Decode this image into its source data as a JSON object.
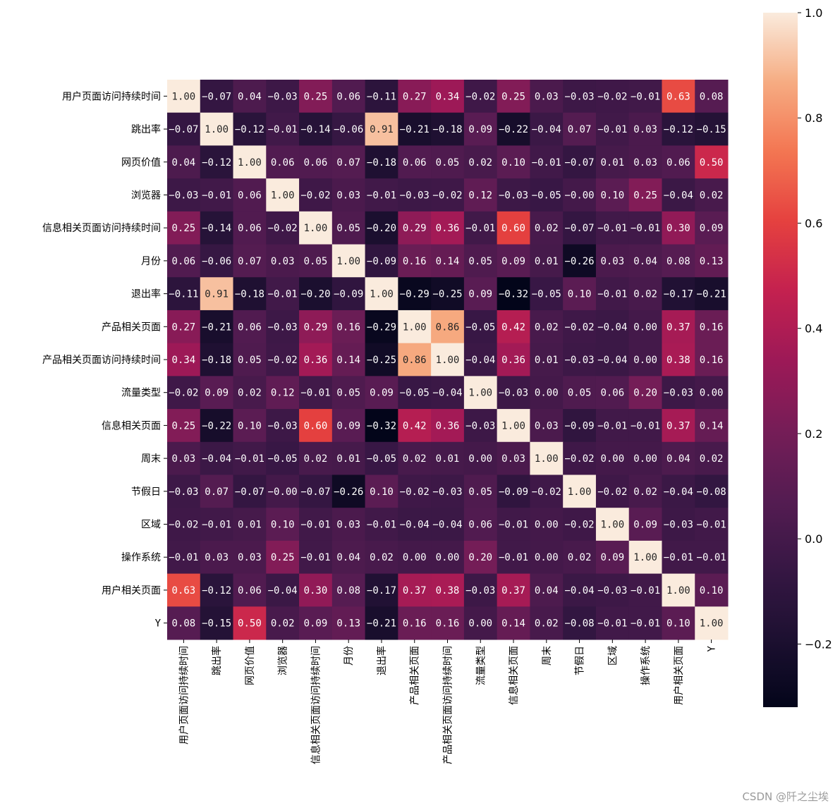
{
  "chart_data": {
    "type": "heatmap",
    "title": "",
    "xlabel": "",
    "ylabel": "",
    "labels": [
      "用户页面访问持续时间",
      "跳出率",
      "网页价值",
      "浏览器",
      "信息相关页面访问持续时间",
      "月份",
      "退出率",
      "产品相关页面",
      "产品相关页面访问持续时间",
      "流量类型",
      "信息相关页面",
      "周末",
      "节假日",
      "区域",
      "操作系统",
      "用户相关页面",
      "Y"
    ],
    "values": [
      [
        1.0,
        -0.07,
        0.04,
        -0.03,
        0.25,
        0.06,
        -0.11,
        0.27,
        0.34,
        -0.02,
        0.25,
        0.03,
        -0.03,
        -0.02,
        -0.01,
        0.63,
        0.08
      ],
      [
        -0.07,
        1.0,
        -0.12,
        -0.01,
        -0.14,
        -0.06,
        0.91,
        -0.21,
        -0.18,
        0.09,
        -0.22,
        -0.04,
        0.07,
        -0.01,
        0.03,
        -0.12,
        -0.15
      ],
      [
        0.04,
        -0.12,
        1.0,
        0.06,
        0.06,
        0.07,
        -0.18,
        0.06,
        0.05,
        0.02,
        0.1,
        -0.01,
        -0.07,
        0.01,
        0.03,
        0.06,
        0.5
      ],
      [
        -0.03,
        -0.01,
        0.06,
        1.0,
        -0.02,
        0.03,
        -0.01,
        -0.03,
        -0.02,
        0.12,
        -0.03,
        -0.05,
        -0.0,
        0.1,
        0.25,
        -0.04,
        0.02
      ],
      [
        0.25,
        -0.14,
        0.06,
        -0.02,
        1.0,
        0.05,
        -0.2,
        0.29,
        0.36,
        -0.01,
        0.6,
        0.02,
        -0.07,
        -0.01,
        -0.01,
        0.3,
        0.09
      ],
      [
        0.06,
        -0.06,
        0.07,
        0.03,
        0.05,
        1.0,
        -0.09,
        0.16,
        0.14,
        0.05,
        0.09,
        0.01,
        -0.26,
        0.03,
        0.04,
        0.08,
        0.13
      ],
      [
        -0.11,
        0.91,
        -0.18,
        -0.01,
        -0.2,
        -0.09,
        1.0,
        -0.29,
        -0.25,
        0.09,
        -0.32,
        -0.05,
        0.1,
        -0.01,
        0.02,
        -0.17,
        -0.21
      ],
      [
        0.27,
        -0.21,
        0.06,
        -0.03,
        0.29,
        0.16,
        -0.29,
        1.0,
        0.86,
        -0.05,
        0.42,
        0.02,
        -0.02,
        -0.04,
        0.0,
        0.37,
        0.16
      ],
      [
        0.34,
        -0.18,
        0.05,
        -0.02,
        0.36,
        0.14,
        -0.25,
        0.86,
        1.0,
        -0.04,
        0.36,
        0.01,
        -0.03,
        -0.04,
        0.0,
        0.38,
        0.16
      ],
      [
        -0.02,
        0.09,
        0.02,
        0.12,
        -0.01,
        0.05,
        0.09,
        -0.05,
        -0.04,
        1.0,
        -0.03,
        0.0,
        0.05,
        0.06,
        0.2,
        -0.03,
        0.0
      ],
      [
        0.25,
        -0.22,
        0.1,
        -0.03,
        0.6,
        0.09,
        -0.32,
        0.42,
        0.36,
        -0.03,
        1.0,
        0.03,
        -0.09,
        -0.01,
        -0.01,
        0.37,
        0.14
      ],
      [
        0.03,
        -0.04,
        -0.01,
        -0.05,
        0.02,
        0.01,
        -0.05,
        0.02,
        0.01,
        0.0,
        0.03,
        1.0,
        -0.02,
        0.0,
        0.0,
        0.04,
        0.02
      ],
      [
        -0.03,
        0.07,
        -0.07,
        -0.0,
        -0.07,
        -0.26,
        0.1,
        -0.02,
        -0.03,
        0.05,
        -0.09,
        -0.02,
        1.0,
        -0.02,
        0.02,
        -0.04,
        -0.08
      ],
      [
        -0.02,
        -0.01,
        0.01,
        0.1,
        -0.01,
        0.03,
        -0.01,
        -0.04,
        -0.04,
        0.06,
        -0.01,
        0.0,
        -0.02,
        1.0,
        0.09,
        -0.03,
        -0.01
      ],
      [
        -0.01,
        0.03,
        0.03,
        0.25,
        -0.01,
        0.04,
        0.02,
        0.0,
        0.0,
        0.2,
        -0.01,
        0.0,
        0.02,
        0.09,
        1.0,
        -0.01,
        -0.01
      ],
      [
        0.63,
        -0.12,
        0.06,
        -0.04,
        0.3,
        0.08,
        -0.17,
        0.37,
        0.38,
        -0.03,
        0.37,
        0.04,
        -0.04,
        -0.03,
        -0.01,
        1.0,
        0.1
      ],
      [
        0.08,
        -0.15,
        0.5,
        0.02,
        0.09,
        0.13,
        -0.21,
        0.16,
        0.16,
        0.0,
        0.14,
        0.02,
        -0.08,
        -0.01,
        -0.01,
        0.1,
        1.0
      ]
    ],
    "colorbar": {
      "range": [
        -0.32,
        1.0
      ],
      "ticks": [
        -0.2,
        0.0,
        0.2,
        0.4,
        0.6,
        0.8,
        1.0
      ],
      "tick_labels": [
        "−0.2",
        "0.0",
        "0.2",
        "0.4",
        "0.6",
        "0.8",
        "1.0"
      ],
      "colormap": "rocket"
    },
    "annotations_format": "2 decimals"
  },
  "watermark": "CSDN @阡之尘埃"
}
